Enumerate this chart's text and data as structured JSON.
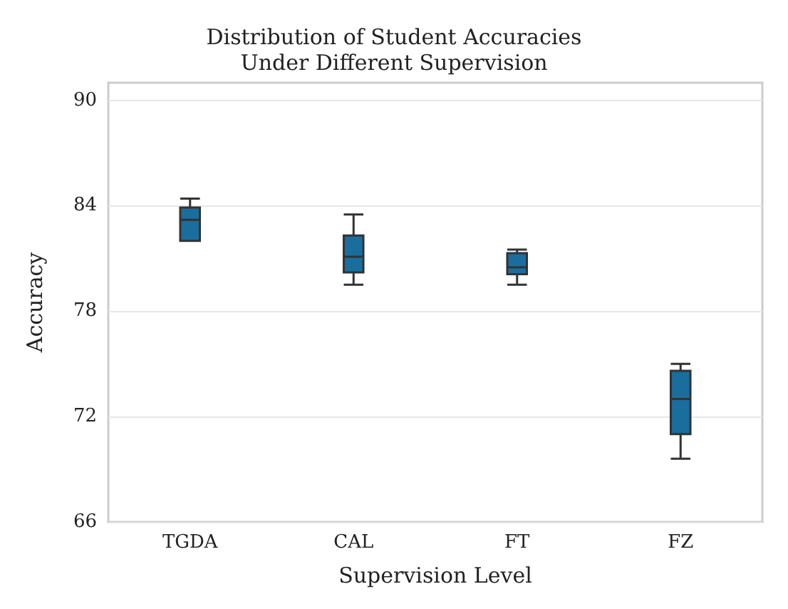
{
  "chart_data": {
    "type": "box",
    "title": "Distribution of Student Accuracies\nUnder Different Supervision",
    "xlabel": "Supervision Level",
    "ylabel": "Accuracy",
    "categories": [
      "TGDA",
      "CAL",
      "FT",
      "FZ"
    ],
    "series": [
      {
        "color": "#1a6e9e",
        "boxes": [
          {
            "low": 82,
            "q1": 82,
            "median": 83.2,
            "q3": 83.9,
            "high": 84.4
          },
          {
            "low": 79.5,
            "q1": 80.2,
            "median": 81.1,
            "q3": 82.3,
            "high": 83.5
          },
          {
            "low": 79.5,
            "q1": 80.1,
            "median": 80.5,
            "q3": 81.3,
            "high": 81.5
          },
          {
            "low": 69.6,
            "q1": 71,
            "median": 73,
            "q3": 74.6,
            "high": 75
          }
        ]
      }
    ],
    "ylim": [
      66,
      91
    ],
    "yticks": [
      66,
      72,
      78,
      84,
      90
    ],
    "grid": "y"
  }
}
